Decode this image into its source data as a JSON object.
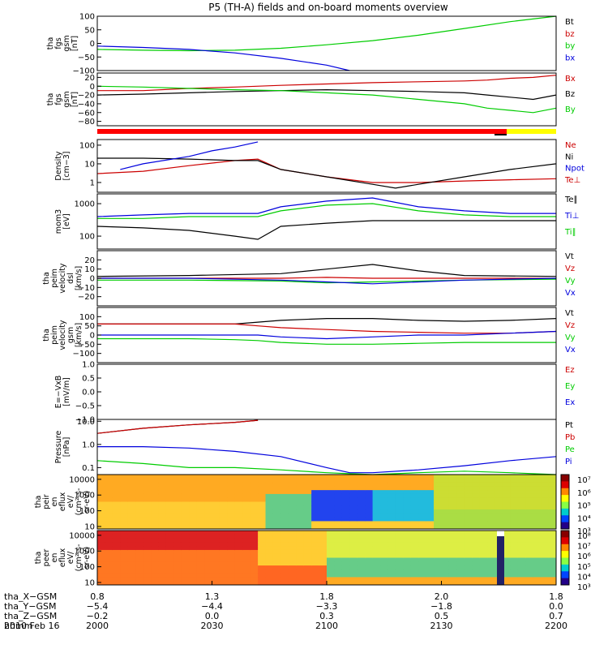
{
  "title": "P5 (TH-A) fields and on-board moments overview",
  "date_label": "2010 Feb 16",
  "colors": {
    "black": "#000000",
    "red": "#cc0000",
    "green": "#00cc00",
    "blue": "#0000dd",
    "yellow": "#ffff00",
    "redbar": "#ff0000"
  },
  "chart_data": [
    {
      "type": "line",
      "id": "fgs_gsm",
      "ylabel_lines": [
        "tha",
        "fgs",
        "gsm",
        "[nT]"
      ],
      "ylim": [
        -100,
        100
      ],
      "ticks": [
        100,
        50,
        0,
        -50,
        -100
      ],
      "tick_labels": [
        "100",
        "50",
        "0",
        "−50",
        "−100"
      ],
      "series": [
        {
          "name": "Bt",
          "color": "#000000",
          "x": [
            0,
            1
          ],
          "y": [
            0,
            0
          ],
          "draw": false
        },
        {
          "name": "bz",
          "color": "#cc0000",
          "x": [
            0,
            1
          ],
          "y": [
            0,
            0
          ],
          "draw": false
        },
        {
          "name": "by",
          "color": "#00cc00",
          "x": [
            0,
            0.1,
            0.2,
            0.3,
            0.4,
            0.5,
            0.6,
            0.7,
            0.8,
            0.9,
            1.0
          ],
          "y": [
            -22,
            -25,
            -27,
            -25,
            -18,
            -5,
            10,
            30,
            55,
            80,
            110
          ]
        },
        {
          "name": "bx",
          "color": "#0000dd",
          "x": [
            0,
            0.1,
            0.2,
            0.3,
            0.4,
            0.5,
            0.55
          ],
          "y": [
            -10,
            -15,
            -22,
            -35,
            -55,
            -80,
            -100
          ]
        }
      ]
    },
    {
      "type": "line",
      "id": "fgs_gsm_hr",
      "ylabel_lines": [
        "tha",
        "fgs",
        "gsm",
        "[nT]"
      ],
      "ylim": [
        -90,
        30
      ],
      "ticks": [
        20,
        0,
        -20,
        -40,
        -60,
        -80
      ],
      "tick_labels": [
        "20",
        "0",
        "−20",
        "−40",
        "−60",
        "−80"
      ],
      "series": [
        {
          "name": "Bx",
          "color": "#cc0000",
          "x": [
            0,
            0.1,
            0.2,
            0.3,
            0.4,
            0.5,
            0.6,
            0.7,
            0.8,
            0.85,
            0.9,
            0.95,
            1.0
          ],
          "y": [
            -10,
            -10,
            -5,
            -2,
            2,
            5,
            8,
            10,
            12,
            14,
            18,
            20,
            25
          ]
        },
        {
          "name": "Bz",
          "color": "#000000",
          "x": [
            0,
            0.1,
            0.2,
            0.3,
            0.4,
            0.5,
            0.6,
            0.7,
            0.8,
            0.85,
            0.9,
            0.95,
            1.0
          ],
          "y": [
            -20,
            -18,
            -15,
            -12,
            -10,
            -8,
            -10,
            -12,
            -15,
            -20,
            -25,
            -30,
            -20
          ]
        },
        {
          "name": "By",
          "color": "#00cc00",
          "x": [
            0,
            0.1,
            0.2,
            0.3,
            0.4,
            0.5,
            0.6,
            0.7,
            0.8,
            0.85,
            0.9,
            0.95,
            1.0
          ],
          "y": [
            0,
            -2,
            -5,
            -8,
            -10,
            -15,
            -20,
            -30,
            -40,
            -50,
            -55,
            -60,
            -50
          ]
        }
      ]
    },
    {
      "type": "line",
      "id": "density",
      "ylabel_lines": [
        "Density",
        "[cm−3]"
      ],
      "log": true,
      "ylim": [
        0.3,
        200
      ],
      "ticks": [
        100,
        10,
        1
      ],
      "tick_labels": [
        "100",
        "10",
        "1"
      ],
      "series": [
        {
          "name": "Ne",
          "color": "#cc0000",
          "x": [
            0,
            0.1,
            0.2,
            0.3,
            0.35,
            0.4,
            0.5,
            0.6,
            0.7,
            0.8,
            0.9,
            1.0
          ],
          "y": [
            3,
            4,
            8,
            15,
            18,
            5,
            2,
            1,
            1,
            1.2,
            1.4,
            1.6
          ]
        },
        {
          "name": "Ni",
          "color": "#000000",
          "x": [
            0,
            0.1,
            0.2,
            0.3,
            0.35,
            0.4,
            0.5,
            0.6,
            0.65,
            0.7,
            0.8,
            0.9,
            1.0
          ],
          "y": [
            20,
            20,
            18,
            15,
            15,
            5,
            2,
            0.8,
            0.5,
            0.8,
            2,
            5,
            10
          ]
        },
        {
          "name": "Npot",
          "color": "#0000dd",
          "x": [
            0.05,
            0.1,
            0.2,
            0.25,
            0.3,
            0.35
          ],
          "y": [
            5,
            10,
            25,
            50,
            80,
            150
          ]
        },
        {
          "name": "Te⊥",
          "color": "#cc0000",
          "x": [
            0,
            1
          ],
          "y": [
            0,
            0
          ],
          "draw": false
        }
      ]
    },
    {
      "type": "line",
      "id": "temperature",
      "ylabel_lines": [
        "mom3",
        "[eV]"
      ],
      "log": true,
      "ylim": [
        40,
        2000
      ],
      "ticks": [
        1000,
        100
      ],
      "tick_labels": [
        "1000",
        "100"
      ],
      "series": [
        {
          "name": "Te∥",
          "color": "#000000",
          "x": [
            0,
            0.1,
            0.2,
            0.3,
            0.35,
            0.4,
            0.5,
            0.6,
            0.7,
            0.8,
            0.9,
            1.0
          ],
          "y": [
            200,
            180,
            150,
            100,
            80,
            200,
            250,
            300,
            300,
            300,
            300,
            300
          ]
        },
        {
          "name": "Ti⊥",
          "color": "#0000dd",
          "x": [
            0,
            0.1,
            0.2,
            0.3,
            0.35,
            0.4,
            0.5,
            0.6,
            0.7,
            0.8,
            0.9,
            1.0
          ],
          "y": [
            400,
            450,
            500,
            500,
            500,
            800,
            1200,
            1500,
            800,
            600,
            500,
            500
          ]
        },
        {
          "name": "Ti∥",
          "color": "#00cc00",
          "x": [
            0,
            0.1,
            0.2,
            0.3,
            0.35,
            0.4,
            0.5,
            0.6,
            0.7,
            0.8,
            0.9,
            1.0
          ],
          "y": [
            350,
            350,
            400,
            400,
            400,
            600,
            900,
            1000,
            600,
            450,
            400,
            400
          ]
        }
      ]
    },
    {
      "type": "line",
      "id": "velocity_dsl",
      "ylabel_lines": [
        "tha",
        "peim",
        "velocity",
        "dsl",
        "[km/s]"
      ],
      "ylim": [
        -30,
        30
      ],
      "ticks": [
        20,
        10,
        0,
        -10,
        -20
      ],
      "tick_labels": [
        "20",
        "10",
        "0",
        "−10",
        "−20"
      ],
      "series": [
        {
          "name": "Vt",
          "color": "#000000",
          "x": [
            0,
            0.2,
            0.4,
            0.5,
            0.6,
            0.7,
            0.8,
            1.0
          ],
          "y": [
            2,
            3,
            5,
            10,
            15,
            8,
            3,
            2
          ]
        },
        {
          "name": "Vz",
          "color": "#cc0000",
          "x": [
            0,
            0.2,
            0.4,
            0.5,
            0.6,
            0.8,
            1.0
          ],
          "y": [
            0,
            0,
            0,
            1,
            0,
            0,
            0
          ]
        },
        {
          "name": "Vy",
          "color": "#00cc00",
          "x": [
            0,
            0.2,
            0.4,
            0.5,
            0.6,
            0.8,
            1.0
          ],
          "y": [
            -2,
            -2,
            -3,
            -5,
            -4,
            -2,
            -1
          ]
        },
        {
          "name": "Vx",
          "color": "#0000dd",
          "x": [
            0,
            0.2,
            0.4,
            0.5,
            0.6,
            0.8,
            1.0
          ],
          "y": [
            0,
            0,
            -2,
            -4,
            -6,
            -2,
            0
          ]
        }
      ]
    },
    {
      "type": "line",
      "id": "velocity_gsm",
      "ylabel_lines": [
        "tha",
        "peim",
        "velocity",
        "gsm",
        "[km/s]"
      ],
      "ylim": [
        -150,
        150
      ],
      "ticks": [
        100,
        50,
        0,
        -50,
        -100
      ],
      "tick_labels": [
        "100",
        "50",
        "0",
        "−50",
        "−100"
      ],
      "series": [
        {
          "name": "Vt",
          "color": "#000000",
          "x": [
            0,
            0.2,
            0.3,
            0.35,
            0.4,
            0.5,
            0.6,
            0.7,
            0.8,
            0.9,
            1.0
          ],
          "y": [
            60,
            60,
            60,
            70,
            80,
            90,
            90,
            80,
            75,
            80,
            90
          ]
        },
        {
          "name": "Vz",
          "color": "#cc0000",
          "x": [
            0,
            0.2,
            0.3,
            0.35,
            0.4,
            0.5,
            0.6,
            0.7,
            0.8,
            0.9,
            1.0
          ],
          "y": [
            60,
            60,
            60,
            50,
            40,
            30,
            20,
            15,
            10,
            10,
            20
          ]
        },
        {
          "name": "Vy",
          "color": "#00cc00",
          "x": [
            0,
            0.2,
            0.3,
            0.35,
            0.4,
            0.5,
            0.6,
            0.7,
            0.8,
            0.9,
            1.0
          ],
          "y": [
            -20,
            -20,
            -25,
            -30,
            -40,
            -50,
            -50,
            -45,
            -40,
            -40,
            -40
          ]
        },
        {
          "name": "Vx",
          "color": "#0000dd",
          "x": [
            0,
            0.2,
            0.3,
            0.35,
            0.4,
            0.5,
            0.6,
            0.7,
            0.8,
            0.9,
            1.0
          ],
          "y": [
            0,
            0,
            0,
            0,
            -10,
            -20,
            -10,
            0,
            0,
            10,
            20
          ]
        }
      ]
    },
    {
      "type": "line",
      "id": "efield",
      "ylabel_lines": [
        "E=−VxB",
        "[mV/m]"
      ],
      "ylim": [
        -1,
        1
      ],
      "ticks": [
        1,
        0.5,
        0,
        -0.5,
        -1
      ],
      "tick_labels": [
        "1.0",
        "0.5",
        "0.0",
        "−0.5",
        "−1.0"
      ],
      "series": [
        {
          "name": "Ez",
          "color": "#cc0000",
          "x": [
            0,
            1
          ],
          "y": [
            0,
            0
          ],
          "draw": false
        },
        {
          "name": "Ey",
          "color": "#00cc00",
          "x": [
            0,
            1
          ],
          "y": [
            0,
            0
          ],
          "draw": false
        },
        {
          "name": "Ex",
          "color": "#0000dd",
          "x": [
            0,
            1
          ],
          "y": [
            0,
            0
          ],
          "draw": false
        }
      ]
    },
    {
      "type": "line",
      "id": "pressure",
      "ylabel_lines": [
        "Pressure",
        "[nPa]"
      ],
      "log": true,
      "ylim": [
        0.05,
        12
      ],
      "ticks": [
        10,
        1,
        0.1
      ],
      "tick_labels": [
        "10.0",
        "1.0",
        "0.1"
      ],
      "series": [
        {
          "name": "Pt",
          "color": "#000000",
          "x": [
            0,
            0.1,
            0.2,
            0.3,
            0.35
          ],
          "y": [
            3,
            5,
            7,
            9,
            11
          ]
        },
        {
          "name": "Pb",
          "color": "#cc0000",
          "x": [
            0,
            0.1,
            0.2,
            0.3,
            0.35
          ],
          "y": [
            3,
            5,
            7,
            9,
            11
          ]
        },
        {
          "name": "Pe",
          "color": "#00cc00",
          "x": [
            0,
            0.1,
            0.2,
            0.3,
            0.4,
            0.5,
            0.6,
            0.7,
            0.8,
            0.9,
            1.0
          ],
          "y": [
            0.2,
            0.15,
            0.1,
            0.1,
            0.08,
            0.06,
            0.05,
            0.06,
            0.07,
            0.06,
            0.05
          ]
        },
        {
          "name": "Pi",
          "color": "#0000dd",
          "x": [
            0,
            0.1,
            0.2,
            0.3,
            0.4,
            0.5,
            0.55,
            0.6,
            0.7,
            0.8,
            0.9,
            1.0
          ],
          "y": [
            0.8,
            0.8,
            0.7,
            0.5,
            0.3,
            0.1,
            0.06,
            0.06,
            0.08,
            0.12,
            0.2,
            0.3
          ]
        }
      ]
    },
    {
      "type": "heatmap",
      "id": "peir_eflux",
      "ylabel_lines": [
        "tha",
        "peir",
        "en",
        "eflux",
        "eV/",
        "(cm²-s-",
        "sr-eV)"
      ],
      "log": true,
      "ylim": [
        7,
        20000
      ],
      "ticks": [
        10000,
        1000,
        100,
        10
      ],
      "tick_labels": [
        "10000",
        "1000",
        "100",
        "10"
      ]
    },
    {
      "type": "heatmap",
      "id": "peer_eflux",
      "ylabel_lines": [
        "tha",
        "peer",
        "en",
        "eflux",
        "eV/",
        "(cm²-s-",
        "sr-eV)"
      ],
      "log": true,
      "ylim": [
        7,
        20000
      ],
      "ticks": [
        10000,
        1000,
        100,
        10
      ],
      "tick_labels": [
        "10000",
        "1000",
        "100",
        "10"
      ]
    }
  ],
  "colorbar_labels": [
    [
      "10⁷",
      "10⁶",
      "10⁵",
      "10⁴",
      "10³"
    ],
    [
      "10⁸",
      "10⁷",
      "10⁶",
      "10⁵",
      "10⁴",
      "10³"
    ]
  ],
  "xaxis": {
    "rows": [
      {
        "name": "tha_X−GSM",
        "values": [
          "0.8",
          "1.3",
          "1.8",
          "2.0",
          "1.8"
        ]
      },
      {
        "name": "tha_Y−GSM",
        "values": [
          "−5.4",
          "−4.4",
          "−3.3",
          "−1.8",
          "0.0"
        ]
      },
      {
        "name": "tha_Z−GSM",
        "values": [
          "−0.2",
          "0.0",
          "0.3",
          "0.5",
          "0.7"
        ]
      },
      {
        "name": "hhmm",
        "values": [
          "2000",
          "2030",
          "2100",
          "2130",
          "2200"
        ]
      }
    ]
  }
}
